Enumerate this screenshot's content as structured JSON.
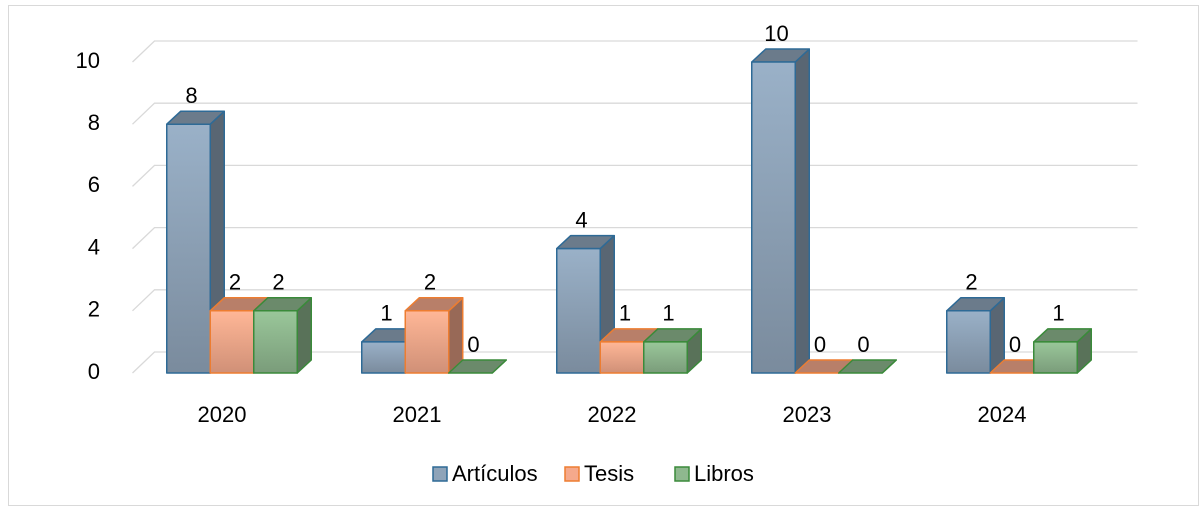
{
  "chart_data": {
    "type": "bar3d",
    "categories": [
      "2020",
      "2021",
      "2022",
      "2023",
      "2024"
    ],
    "series": [
      {
        "name": "Artículos",
        "color": "#8fa4b9",
        "stroke": "#2e6a96",
        "values": [
          8,
          1,
          4,
          10,
          2
        ]
      },
      {
        "name": "Tesis",
        "color": "#f5a98c",
        "stroke": "#ed7d31",
        "values": [
          2,
          2,
          1,
          0,
          0
        ]
      },
      {
        "name": "Libros",
        "color": "#8fb88f",
        "stroke": "#3a8a3a",
        "values": [
          2,
          0,
          1,
          0,
          1
        ]
      }
    ],
    "ylim": [
      0,
      10
    ],
    "yticks": [
      0,
      2,
      4,
      6,
      8,
      10
    ],
    "grid": true,
    "legend": "bottom"
  }
}
